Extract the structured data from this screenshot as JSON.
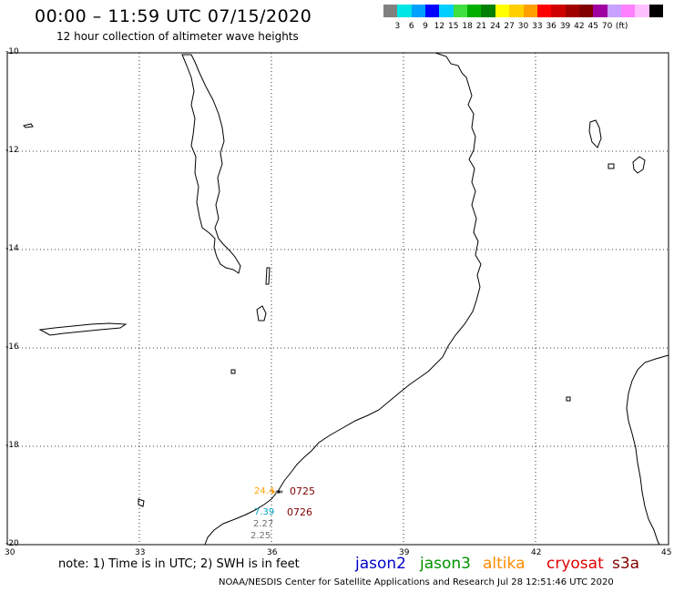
{
  "header": {
    "title": "00:00 – 11:59 UTC 07/15/2020",
    "subtitle": "12 hour collection of altimeter wave heights"
  },
  "legend": {
    "colors": [
      "#808080",
      "#00e5e5",
      "#00a0ff",
      "#0000ff",
      "#00cfff",
      "#40e040",
      "#00b000",
      "#008000",
      "#ffff00",
      "#ffd000",
      "#ffa000",
      "#ff0000",
      "#d00000",
      "#a00000",
      "#800000",
      "#a000a0",
      "#c8a0ff",
      "#ff80ff",
      "#ffc0ff",
      "#000000"
    ],
    "ticks": [
      "3",
      "6",
      "9",
      "12",
      "15",
      "18",
      "21",
      "24",
      "27",
      "30",
      "33",
      "36",
      "39",
      "42",
      "45",
      "70"
    ],
    "unit": "(ft)"
  },
  "axes": {
    "x_labels": [
      "30",
      "33",
      "36",
      "39",
      "42",
      "45"
    ],
    "y_labels": [
      "-10",
      "-12",
      "-14",
      "-16",
      "-18",
      "-20"
    ]
  },
  "labels": {
    "times": [
      "0725",
      "0726"
    ],
    "heights": [
      "24.4",
      "7.39",
      "2.27",
      "2.25"
    ]
  },
  "footer": {
    "note": "note: 1) Time is in UTC; 2) SWH is in feet",
    "satellites": [
      {
        "name": "jason2",
        "color": "#0000cc"
      },
      {
        "name": "jason3",
        "color": "#009000"
      },
      {
        "name": "altika",
        "color": "#ff8c00"
      },
      {
        "name": "cryosat",
        "color": "#e00000"
      },
      {
        "name": "s3a",
        "color": "#800000"
      }
    ],
    "credit": "NOAA/NESDIS Center for Satellite Applications and Research    Jul 28 12:51:46 UTC 2020"
  }
}
